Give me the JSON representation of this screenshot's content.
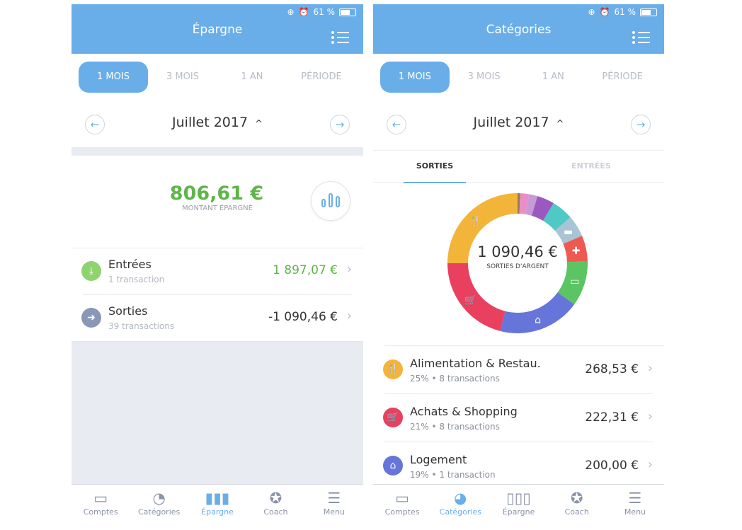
{
  "status": {
    "percent": "61 %",
    "battery_level": 0.61
  },
  "colors": {
    "header": "#6aaee9",
    "green": "#5fb54a",
    "active": "#6aaee9"
  },
  "periods": [
    "1 MOIS",
    "3 MOIS",
    "1 AN",
    "PÉRIODE"
  ],
  "month": "Juillet 2017",
  "epargne": {
    "title": "Épargne",
    "amount": "806,61 €",
    "amount_label": "MONTANT ÉPARGNÉ",
    "rows": [
      {
        "name": "Entrées",
        "sub": "1 transaction",
        "value": "1 897,07 €",
        "icon": "download-icon",
        "color": "#8fd36f"
      },
      {
        "name": "Sorties",
        "sub": "39 transactions",
        "value": "-1 090,46 €",
        "icon": "exit-arrow-icon",
        "color": "#8a98b8"
      }
    ]
  },
  "categories": {
    "title": "Catégories",
    "subtabs": [
      "SORTIES",
      "ENTRÉES"
    ],
    "total": "1 090,46 €",
    "total_label": "SORTIES D'ARGENT",
    "donut": [
      {
        "pct": 0.6,
        "color": "#9a7a55",
        "icon": ""
      },
      {
        "pct": 2,
        "color": "#e98fc7",
        "icon": ""
      },
      {
        "pct": 2,
        "color": "#c79ad6",
        "icon": ""
      },
      {
        "pct": 4,
        "color": "#9b59c0",
        "icon": ""
      },
      {
        "pct": 5,
        "color": "#4fc9c4",
        "icon": ""
      },
      {
        "pct": 5,
        "color": "#a9c4d4",
        "icon": "folder-icon"
      },
      {
        "pct": 6,
        "color": "#ee5a52",
        "icon": "health-cross-icon"
      },
      {
        "pct": 10.4,
        "color": "#5bc463",
        "icon": "credit-card-icon"
      },
      {
        "pct": 19,
        "color": "#6675d9",
        "icon": "home-icon"
      },
      {
        "pct": 21,
        "color": "#e9405f",
        "icon": "cart-icon"
      },
      {
        "pct": 25,
        "color": "#f3b43a",
        "icon": "fork-knife-icon"
      }
    ],
    "rows": [
      {
        "name": "Alimentation & Restau.",
        "sub": "25% • 8 transactions",
        "value": "268,53 €",
        "icon": "fork-knife-icon",
        "color": "#f3b43a"
      },
      {
        "name": "Achats & Shopping",
        "sub": "21% • 8 transactions",
        "value": "222,31 €",
        "icon": "cart-icon",
        "color": "#e9405f"
      },
      {
        "name": "Logement",
        "sub": "19% • 1 transaction",
        "value": "200,00 €",
        "icon": "home-icon",
        "color": "#6675d9"
      }
    ]
  },
  "tabbar": [
    "Comptes",
    "Catégories",
    "Épargne",
    "Coach",
    "Menu"
  ]
}
